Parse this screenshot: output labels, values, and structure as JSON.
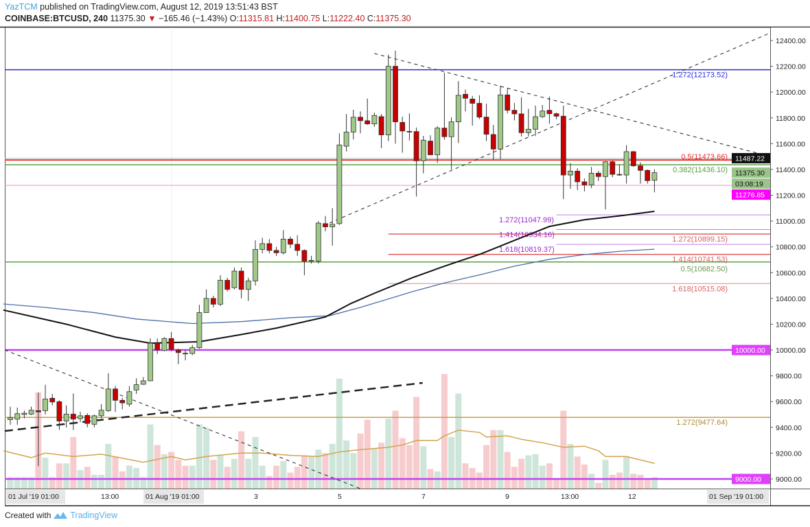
{
  "header": {
    "author": "YazTCM",
    "published": "published on TradingView.com, August 12, 2019 13:51:43 BST",
    "symbol": "COINBASE:BTCUSD, 240",
    "last": "11375.30",
    "change": "−165.46 (−1.43%)",
    "o_label": "O:",
    "o": "11315.81",
    "h_label": "H:",
    "h": "11400.75",
    "l_label": "L:",
    "l": "11222.40",
    "c_label": "C:",
    "c": "11375.30"
  },
  "footer": {
    "created_with": "Created with",
    "brand": "TradingView"
  },
  "colors": {
    "up": "#9fc889",
    "down": "#c80000",
    "vol_up": "#c6e2d2",
    "vol_down": "#f6c3c6",
    "ma_black": "#111111",
    "ma_blue": "#4a6fa5",
    "vol_ma": "#d4a34a"
  },
  "chart_data": {
    "type": "candlestick",
    "title": "COINBASE:BTCUSD, 240",
    "ylim": [
      9000,
      12400
    ],
    "yticks": [
      "12400.00",
      "12200.00",
      "12000.00",
      "11800.00",
      "11600.00",
      "11400.00",
      "11200.00",
      "11000.00",
      "10800.00",
      "10600.00",
      "10400.00",
      "10200.00",
      "10000.00",
      "9800.00",
      "9600.00",
      "9400.00",
      "9200.00",
      "9000.00"
    ],
    "xticks": [
      "01 Jul '19  01:00",
      "13:00",
      "01 Aug '19  01:00",
      "3",
      "5",
      "7",
      "9",
      "13:00",
      "12",
      "01 Sep '19  01:00"
    ],
    "candles_ohlc": [
      [
        9460,
        9560,
        9420,
        9475
      ],
      [
        9464,
        9554,
        9420,
        9507
      ],
      [
        9500,
        9530,
        9470,
        9510
      ],
      [
        9503,
        9560,
        9495,
        9533
      ],
      [
        9530,
        9670,
        9100,
        9520
      ],
      [
        9530,
        9730,
        9500,
        9620
      ],
      [
        9626,
        9660,
        9570,
        9597
      ],
      [
        9599,
        9610,
        9380,
        9449
      ],
      [
        9449,
        9570,
        9400,
        9503
      ],
      [
        9503,
        9663,
        9380,
        9464
      ],
      [
        9468,
        9520,
        9440,
        9490
      ],
      [
        9493,
        9510,
        9400,
        9430
      ],
      [
        9424,
        9500,
        9400,
        9490
      ],
      [
        9490,
        9580,
        9470,
        9533
      ],
      [
        9530,
        9820,
        9520,
        9698
      ],
      [
        9698,
        9720,
        9520,
        9610
      ],
      [
        9610,
        9630,
        9540,
        9590
      ],
      [
        9580,
        9720,
        9560,
        9677
      ],
      [
        9690,
        9780,
        9660,
        9731
      ],
      [
        9734,
        9790,
        9730,
        9761
      ],
      [
        9761,
        10090,
        9760,
        10053
      ],
      [
        10053,
        10090,
        9970,
        10000
      ],
      [
        9996,
        10100,
        9990,
        10089
      ],
      [
        10089,
        10140,
        9990,
        10004
      ],
      [
        10000,
        10010,
        9890,
        9980
      ],
      [
        9975,
        10000,
        9920,
        9972
      ],
      [
        9973,
        10040,
        9960,
        10018
      ],
      [
        10018,
        10350,
        10010,
        10290
      ],
      [
        10290,
        10470,
        10290,
        10400
      ],
      [
        10400,
        10420,
        10330,
        10355
      ],
      [
        10355,
        10580,
        10340,
        10541
      ],
      [
        10541,
        10560,
        10455,
        10470
      ],
      [
        10483,
        10640,
        10470,
        10612
      ],
      [
        10612,
        10640,
        10400,
        10470
      ],
      [
        10470,
        10560,
        10380,
        10536
      ],
      [
        10536,
        10850,
        10500,
        10780
      ],
      [
        10780,
        10870,
        10750,
        10825
      ],
      [
        10825,
        10860,
        10750,
        10772
      ],
      [
        10772,
        10800,
        10730,
        10754
      ],
      [
        10754,
        10930,
        10740,
        10860
      ],
      [
        10860,
        10880,
        10790,
        10820
      ],
      [
        10820,
        10890,
        10730,
        10772
      ],
      [
        10772,
        10780,
        10580,
        10689
      ],
      [
        10690,
        10730,
        10670,
        10695
      ],
      [
        10690,
        11000,
        10670,
        10984
      ],
      [
        10980,
        11040,
        10920,
        10955
      ],
      [
        10955,
        11100,
        10810,
        10975
      ],
      [
        10980,
        11680,
        10970,
        11590
      ],
      [
        11580,
        11830,
        11540,
        11690
      ],
      [
        11690,
        11863,
        11633,
        11805
      ],
      [
        11805,
        11850,
        11680,
        11778
      ],
      [
        11778,
        11950,
        11745,
        11753
      ],
      [
        11753,
        11840,
        11730,
        11819
      ],
      [
        11810,
        11830,
        11565,
        11668
      ],
      [
        11668,
        12290,
        11620,
        12200
      ],
      [
        12200,
        12320,
        11600,
        11769
      ],
      [
        11765,
        11810,
        11530,
        11698
      ],
      [
        11695,
        11835,
        11625,
        11690
      ],
      [
        11694,
        11725,
        11190,
        11467
      ],
      [
        11467,
        11660,
        11370,
        11627
      ],
      [
        11620,
        11665,
        11513,
        11513
      ],
      [
        11513,
        11735,
        11450,
        11721
      ],
      [
        11721,
        12150,
        11630,
        11654
      ],
      [
        11654,
        11805,
        11400,
        11769
      ],
      [
        11769,
        12085,
        11605,
        11975
      ],
      [
        11983,
        12020,
        11850,
        11952
      ],
      [
        11946,
        11970,
        11740,
        11913
      ],
      [
        11913,
        11975,
        11790,
        11806
      ],
      [
        11806,
        11910,
        11620,
        11673
      ],
      [
        11671,
        11745,
        11475,
        11558
      ],
      [
        11558,
        12050,
        11480,
        11978
      ],
      [
        11978,
        12030,
        11835,
        11859
      ],
      [
        11859,
        11915,
        11780,
        11831
      ],
      [
        11831,
        11960,
        11655,
        11685
      ],
      [
        11685,
        11870,
        11655,
        11712
      ],
      [
        11712,
        11895,
        11660,
        11809
      ],
      [
        11809,
        11900,
        11800,
        11853
      ],
      [
        11859,
        11965,
        11755,
        11832
      ],
      [
        11832,
        11840,
        11790,
        11813
      ],
      [
        11813,
        11895,
        11170,
        11357
      ],
      [
        11357,
        11450,
        11250,
        11387
      ],
      [
        11387,
        11410,
        11240,
        11304
      ],
      [
        11304,
        11330,
        11230,
        11280
      ],
      [
        11280,
        11420,
        11255,
        11371
      ],
      [
        11371,
        11390,
        11310,
        11345
      ],
      [
        11345,
        11465,
        11090,
        11460
      ],
      [
        11460,
        11470,
        11340,
        11362
      ],
      [
        11362,
        11440,
        11350,
        11360
      ],
      [
        11357,
        11588,
        11290,
        11538
      ],
      [
        11538,
        11545,
        11420,
        11428
      ],
      [
        11428,
        11455,
        11290,
        11393
      ],
      [
        11393,
        11400,
        11290,
        11313
      ],
      [
        11315.81,
        11400.75,
        11222.4,
        11375.3
      ]
    ],
    "volume_relative": [
      10,
      10,
      10,
      10,
      84,
      27,
      10,
      22,
      22,
      45,
      16,
      19,
      12,
      12,
      39,
      28,
      15,
      20,
      18,
      10,
      56,
      38,
      30,
      32,
      25,
      20,
      20,
      56,
      53,
      25,
      29,
      19,
      26,
      50,
      26,
      45,
      20,
      11,
      20,
      24,
      14,
      19,
      29,
      28,
      34,
      31,
      39,
      96,
      42,
      31,
      48,
      60,
      35,
      40,
      61,
      68,
      44,
      38,
      80,
      37,
      17,
      15,
      100,
      45,
      83,
      22,
      18,
      14,
      38,
      51,
      51,
      32,
      19,
      26,
      29,
      30,
      20,
      22,
      8,
      68,
      39,
      28,
      21,
      13,
      5,
      25,
      12,
      14,
      28,
      13,
      12,
      8,
      10
    ],
    "volume_ma": [
      [
        -1,
        33
      ],
      [
        3,
        27
      ],
      [
        5,
        31
      ],
      [
        9,
        28
      ],
      [
        13,
        30
      ],
      [
        19,
        23
      ],
      [
        23,
        28
      ],
      [
        25,
        25
      ],
      [
        28,
        28
      ],
      [
        33,
        31
      ],
      [
        36,
        31
      ],
      [
        40,
        29
      ],
      [
        44,
        28
      ],
      [
        47,
        32
      ],
      [
        50,
        34
      ],
      [
        54,
        36
      ],
      [
        56,
        38
      ],
      [
        58,
        42
      ],
      [
        61,
        42
      ],
      [
        62,
        46
      ],
      [
        64,
        51
      ],
      [
        67,
        49
      ],
      [
        68,
        45
      ],
      [
        71,
        46
      ],
      [
        73,
        43
      ],
      [
        76,
        40
      ],
      [
        79,
        36
      ],
      [
        82,
        37
      ],
      [
        84,
        33
      ],
      [
        85,
        28
      ],
      [
        88,
        28
      ],
      [
        92,
        22
      ]
    ],
    "ma_black": [
      [
        -1,
        10310
      ],
      [
        8,
        10200
      ],
      [
        15,
        10100
      ],
      [
        20,
        10053
      ],
      [
        27,
        10064
      ],
      [
        33,
        10120
      ],
      [
        38,
        10170
      ],
      [
        45,
        10256
      ],
      [
        48.5,
        10357
      ],
      [
        52,
        10440
      ],
      [
        57.4,
        10560
      ],
      [
        62,
        10650
      ],
      [
        67.2,
        10745
      ],
      [
        72,
        10850
      ],
      [
        77,
        10958
      ],
      [
        82,
        11010
      ],
      [
        87,
        11040
      ],
      [
        92,
        11075
      ]
    ],
    "ma_blue": [
      [
        -1,
        10357
      ],
      [
        5,
        10330
      ],
      [
        12,
        10290
      ],
      [
        18,
        10240
      ],
      [
        26,
        10205
      ],
      [
        33,
        10220
      ],
      [
        40,
        10250
      ],
      [
        45.6,
        10266
      ],
      [
        50,
        10330
      ],
      [
        57.4,
        10452
      ],
      [
        62,
        10520
      ],
      [
        67.2,
        10585
      ],
      [
        72,
        10650
      ],
      [
        77,
        10703
      ],
      [
        82,
        10740
      ],
      [
        87,
        10765
      ],
      [
        92,
        10782
      ]
    ],
    "levels": [
      {
        "price": 12173.52,
        "label": "1.272(12173.52)",
        "color": "#2a2ad8",
        "from": "left",
        "label_side": "right",
        "label_pos": "below",
        "width": 1.5
      },
      {
        "price": 11487.22,
        "label": "",
        "color": "#b9b9b9",
        "from": "left",
        "label_side": "right",
        "label_pos": "below",
        "width": 1
      },
      {
        "price": 11473.66,
        "label": "0.5(11473.66)",
        "color": "#e83030",
        "from": "left",
        "label_side": "right",
        "label_pos": "above",
        "width": 2
      },
      {
        "price": 11436.1,
        "label": "0.382(11436.10)",
        "color": "#5aa045",
        "from": "left",
        "label_side": "right",
        "label_pos": "below",
        "width": 1.5
      },
      {
        "price": 11276.85,
        "label": "",
        "color": "#ff7fd8",
        "from": "left",
        "label_side": "right",
        "label_pos": "below",
        "width": 1
      },
      {
        "price": 11047.99,
        "label": "1.272(11047.99)",
        "color": "#c77de8",
        "from": 78,
        "label_side": "left",
        "label_pos": "below",
        "width": 1,
        "text_color": "#9b2ad0"
      },
      {
        "price": 10934.16,
        "label": "1.414(10934.16)",
        "color": "#c77de8",
        "from": 78,
        "label_side": "left",
        "label_pos": "below",
        "width": 1,
        "text_color": "#9b2ad0"
      },
      {
        "price": 10899.15,
        "label": "1.272(10899.15)",
        "color": "#e05050",
        "from": 54,
        "label_side": "right",
        "label_pos": "below",
        "width": 1.3,
        "text_color": "#d86060"
      },
      {
        "price": 10819.37,
        "label": "1.618(10819.37)",
        "color": "#c77de8",
        "from": 78,
        "label_side": "left",
        "label_pos": "below",
        "width": 1,
        "text_color": "#9b2ad0"
      },
      {
        "price": 10741.53,
        "label": "1.414(10741.53)",
        "color": "#e05050",
        "from": 54,
        "label_side": "right",
        "label_pos": "below",
        "width": 1.3,
        "text_color": "#d86060"
      },
      {
        "price": 10682.5,
        "label": "0.5(10682.50)",
        "color": "#5aa045",
        "from": "left",
        "label_side": "right",
        "label_pos": "below",
        "width": 1.5,
        "text_color": "#6a9a50"
      },
      {
        "price": 10515.08,
        "label": "1.618(10515.08)",
        "color": "#e8a0a0",
        "from": 54,
        "label_side": "right",
        "label_pos": "below",
        "width": 1.3,
        "text_color": "#d86060"
      },
      {
        "price": 10000.0,
        "label": "",
        "color": "#c040f0",
        "from": "left",
        "label_side": "right",
        "label_pos": "below",
        "width": 2.5
      },
      {
        "price": 9477.64,
        "label": "1.272(9477.64)",
        "color": "#c9a040",
        "from": "left",
        "label_side": "right",
        "label_pos": "below",
        "width": 1.5,
        "text_color": "#b08a30"
      },
      {
        "price": 9000.0,
        "label": "",
        "color": "#c040f0",
        "from": "left",
        "label_side": "right",
        "label_pos": "below",
        "width": 2.5
      }
    ],
    "trendlines": [
      {
        "name": "triangle-upper",
        "points": [
          [
            52,
            12299
          ],
          [
            108.5,
            11501
          ]
        ],
        "style": "dashed-thin"
      },
      {
        "name": "triangle-lower",
        "points": [
          [
            45.6,
            10985
          ],
          [
            108.5,
            12458
          ]
        ],
        "style": "dashed-thin"
      },
      {
        "name": "descending-support",
        "points": [
          [
            -0.8,
            10000
          ],
          [
            50,
            8925
          ]
        ],
        "style": "dashed-thin"
      },
      {
        "name": "rising-support",
        "points": [
          [
            -0.8,
            9372
          ],
          [
            58.9,
            9745
          ]
        ],
        "style": "dashed-thick"
      }
    ],
    "axis_tags": [
      {
        "text": "11487.22",
        "price": 11487.22,
        "bg": "#111111",
        "fg": "#ffffff"
      },
      {
        "text": "11375.30",
        "price": 11375.3,
        "bg": "#9bc48a",
        "fg": "#111111"
      },
      {
        "text": "03:08:19",
        "price": 11315,
        "bg": "#9bc48a",
        "fg": "#111111"
      },
      {
        "text": "11276.85",
        "price": 11255,
        "bg": "#ff00ff",
        "fg": "#ffffff"
      },
      {
        "text": "10000.00",
        "price": 10000.0,
        "bg": "#e040fb",
        "fg": "#ffffff"
      },
      {
        "text": "9000.00",
        "price": 9000.0,
        "bg": "#e040fb",
        "fg": "#ffffff"
      }
    ]
  }
}
